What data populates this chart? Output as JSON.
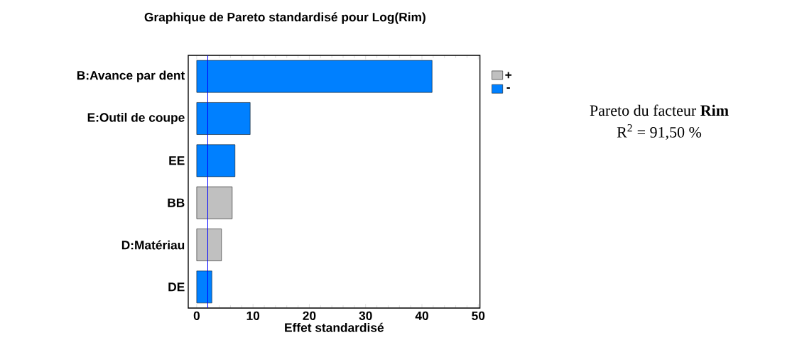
{
  "chart_data": {
    "type": "bar",
    "orientation": "horizontal",
    "title": "Graphique de Pareto standardisé pour Log(Rim)",
    "xlabel": "Effet standardisé",
    "categories": [
      "B:Avance par dent",
      "E:Outil de coupe",
      "EE",
      "BB",
      "D:Matériau",
      "DE"
    ],
    "series": [
      {
        "name": "+",
        "color": "#c0c0c0",
        "values": [
          null,
          null,
          null,
          6.3,
          4.4,
          null
        ]
      },
      {
        "name": "-",
        "color": "#0080ff",
        "values": [
          41.8,
          9.5,
          6.8,
          null,
          null,
          2.7
        ]
      }
    ],
    "xlim": [
      -1.5,
      50.3
    ],
    "xticks": [
      0,
      10,
      20,
      30,
      40,
      50
    ],
    "ref_lines": [
      {
        "axis": "x",
        "value": 1.96,
        "color": "#0000ff"
      }
    ],
    "legend": "right",
    "grid": false,
    "annotations": [
      "Pareto du facteur **Rim**",
      "R$^{2}$ = 91,50 %"
    ]
  }
}
